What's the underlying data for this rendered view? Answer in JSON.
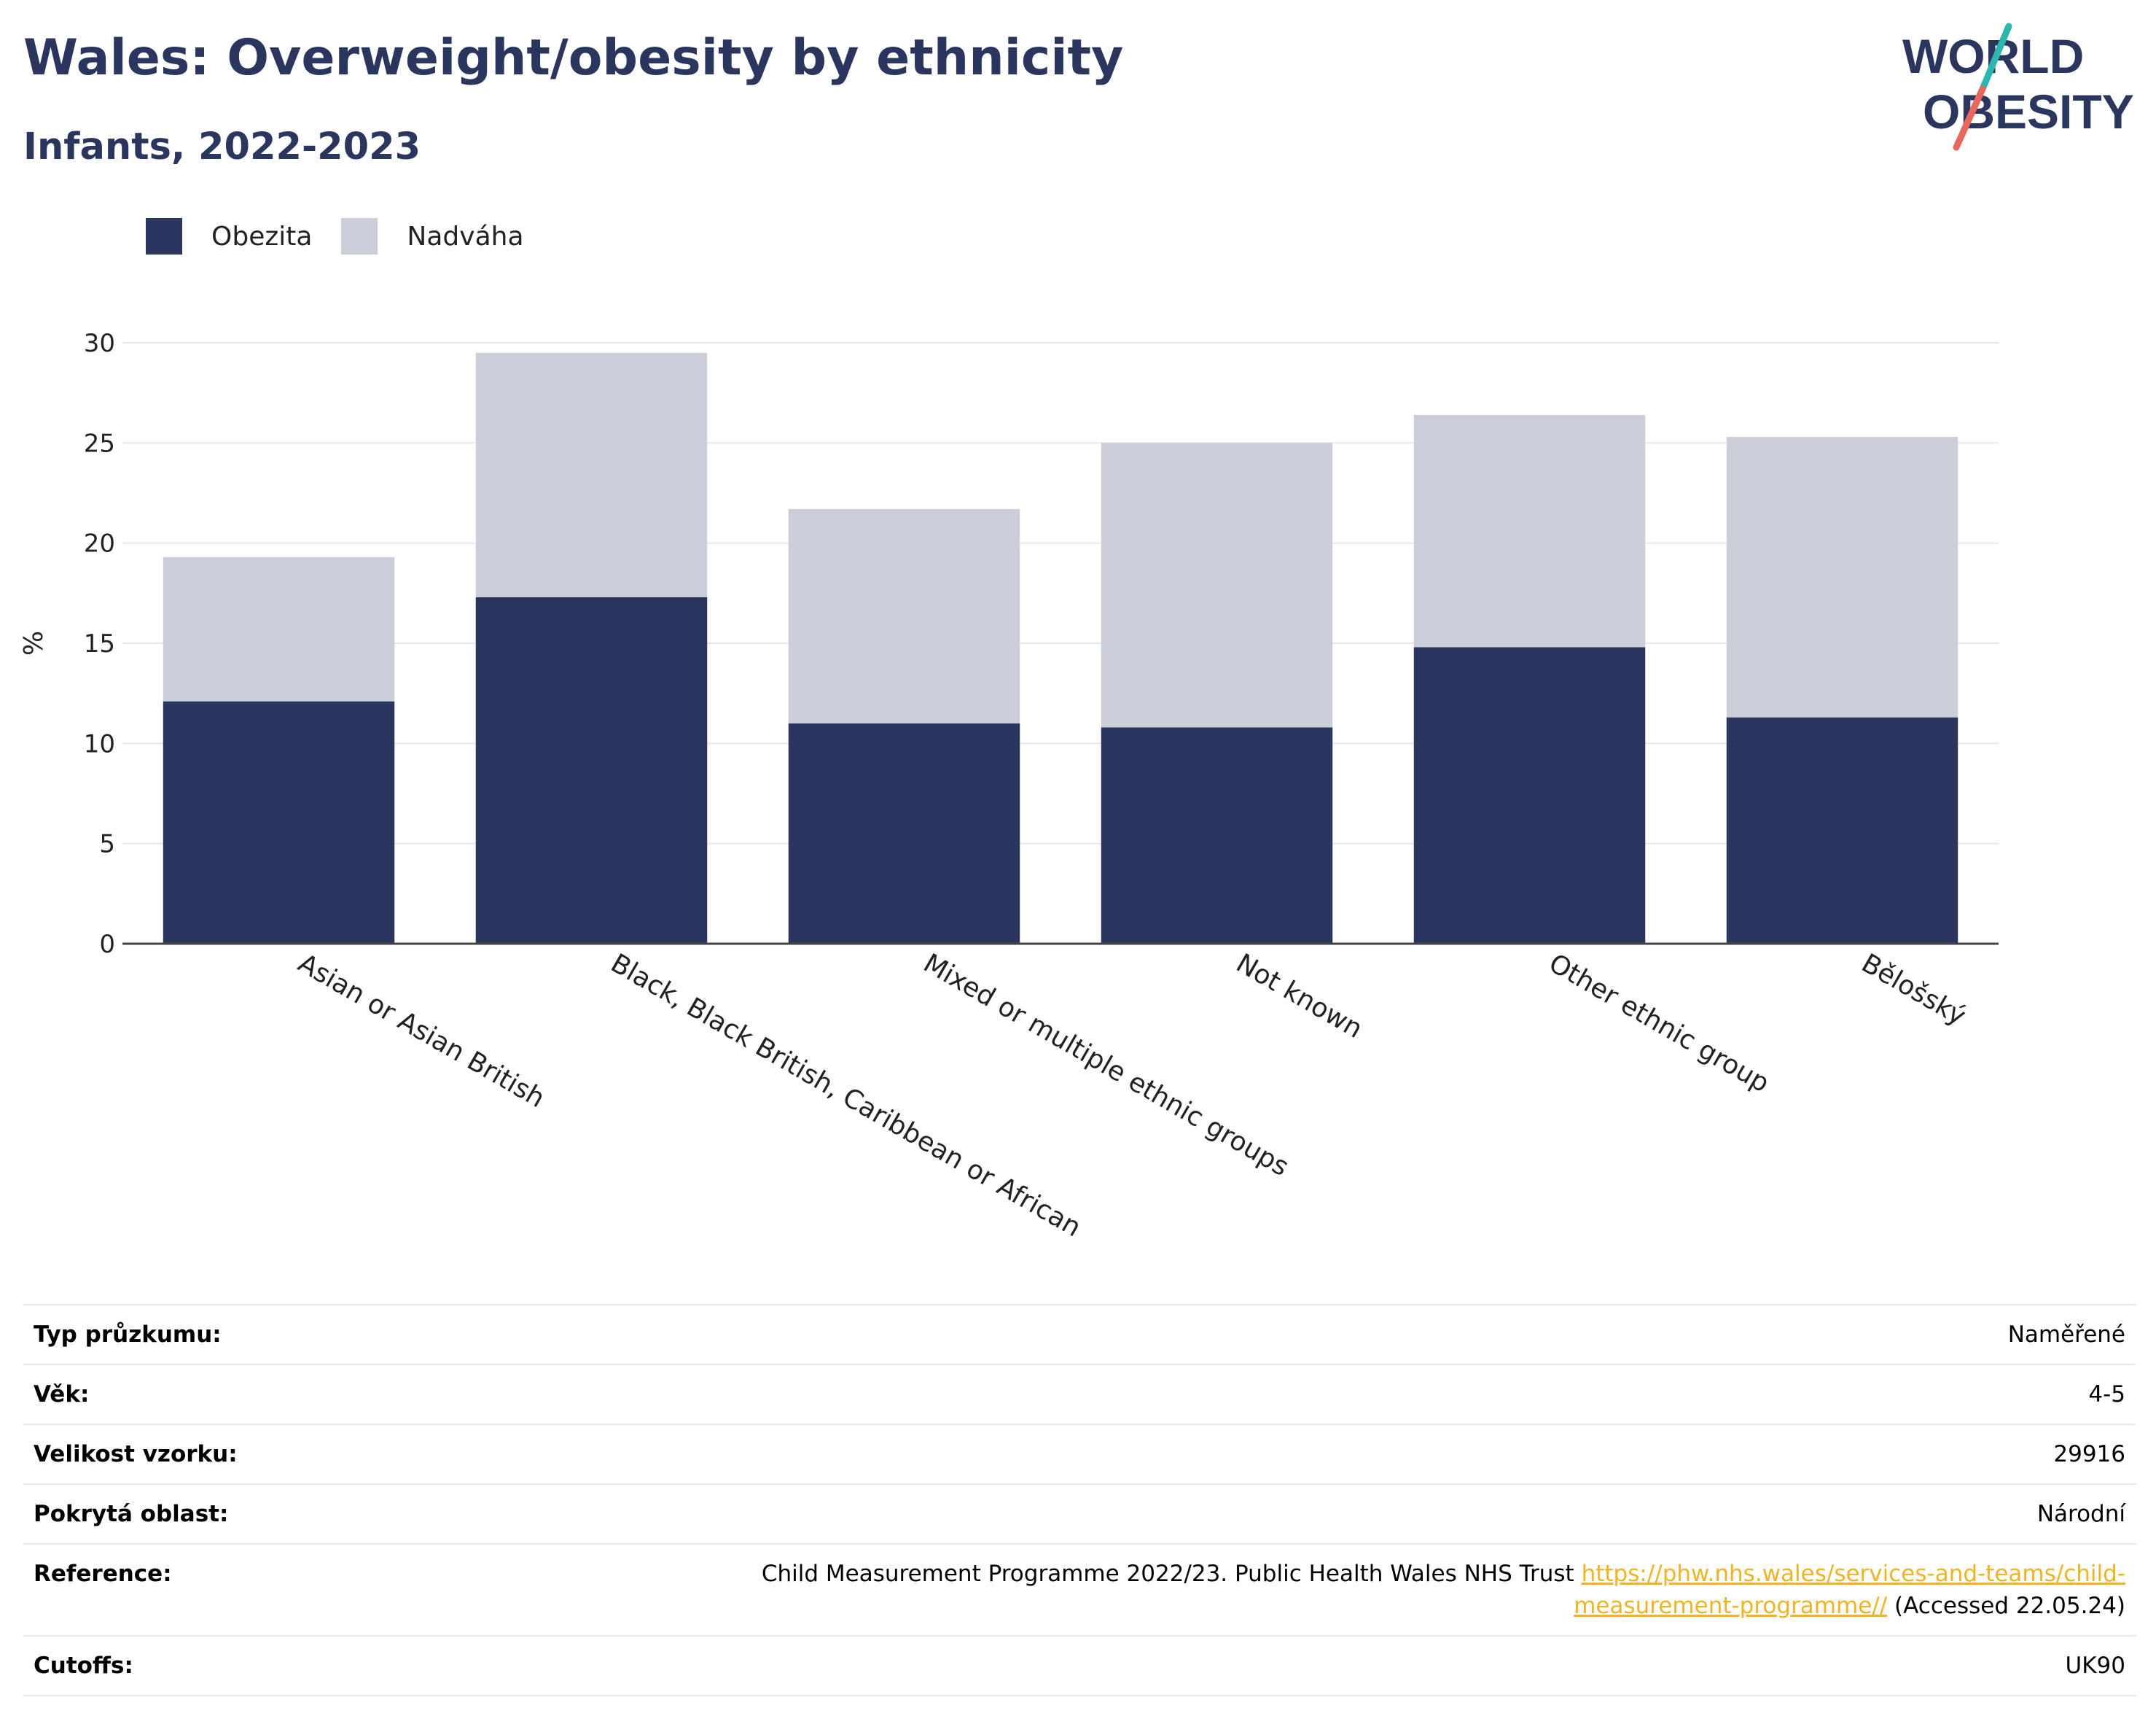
{
  "header": {
    "title": "Wales: Overweight/obesity by ethnicity",
    "subtitle": "Infants, 2022-2023",
    "logo_line1": "WORLD",
    "logo_line2": "OBESITY"
  },
  "colors": {
    "obesity": "#2b365f",
    "overweight": "#cbcdd8",
    "title": "#2b365f",
    "link": "#f0b323",
    "logo_teal": "#2bb6b0",
    "logo_coral": "#e8685c"
  },
  "chart_data": {
    "type": "bar",
    "stacked": true,
    "title": "Wales: Overweight/obesity by ethnicity",
    "subtitle": "Infants, 2022-2023",
    "ylabel": "%",
    "xlabel": "",
    "ylim": [
      0,
      30
    ],
    "yticks": [
      0,
      5,
      10,
      15,
      20,
      25,
      30
    ],
    "grid": true,
    "legend_position": "top-left",
    "categories": [
      "Asian or Asian British",
      "Black, Black British, Caribbean or African",
      "Mixed or multiple ethnic groups",
      "Not known",
      "Other ethnic group",
      "Bělošský"
    ],
    "series": [
      {
        "name": "Obezita",
        "color": "#2b365f",
        "values": [
          12.1,
          17.3,
          11.0,
          10.8,
          14.8,
          11.3
        ]
      },
      {
        "name": "Nadváha",
        "color": "#cbcdd8",
        "values": [
          7.2,
          12.2,
          10.7,
          14.2,
          11.6,
          14.0
        ]
      }
    ]
  },
  "info": {
    "survey_type": {
      "label": "Typ průzkumu:",
      "value": "Naměřené"
    },
    "age": {
      "label": "Věk:",
      "value": "4-5"
    },
    "sample_size": {
      "label": "Velikost vzorku:",
      "value": "29916"
    },
    "area": {
      "label": "Pokrytá oblast:",
      "value": "Národní"
    },
    "reference": {
      "label": "Reference:",
      "text": "Child Measurement Programme 2022/23. Public Health Wales NHS Trust",
      "link_line1": "https://phw.nhs.wales/services-and-teams/child-",
      "link_line2": "measurement-programme//",
      "accessed": "(Accessed 22.05.24)"
    },
    "cutoffs": {
      "label": "Cutoffs:",
      "value": "UK90"
    }
  }
}
